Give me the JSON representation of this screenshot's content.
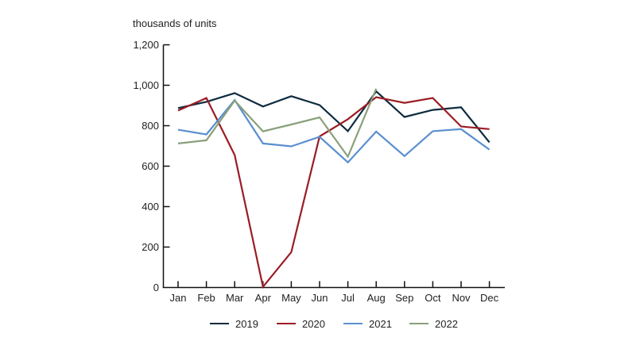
{
  "chart_data": {
    "type": "line",
    "title": "",
    "xlabel": "",
    "ylabel": "thousands of units",
    "ylim": [
      0,
      1200
    ],
    "yticks": [
      0,
      200,
      400,
      600,
      800,
      1000,
      1200
    ],
    "ytick_labels": [
      "0",
      "200",
      "400",
      "600",
      "800",
      "1,000",
      "1,200"
    ],
    "categories": [
      "Jan",
      "Feb",
      "Mar",
      "Apr",
      "May",
      "Jun",
      "Jul",
      "Aug",
      "Sep",
      "Oct",
      "Nov",
      "Dec"
    ],
    "grid": false,
    "legend_position": "bottom",
    "series": [
      {
        "name": "2019",
        "color": "#0d2b40",
        "values": [
          887,
          918,
          961,
          895,
          946,
          902,
          773,
          970,
          843,
          878,
          891,
          718
        ]
      },
      {
        "name": "2020",
        "color": "#9b1c24",
        "values": [
          875,
          937,
          655,
          3,
          175,
          747,
          832,
          941,
          913,
          937,
          796,
          783
        ]
      },
      {
        "name": "2021",
        "color": "#5a8fd0",
        "values": [
          780,
          757,
          927,
          712,
          698,
          745,
          619,
          771,
          650,
          773,
          783,
          682
        ]
      },
      {
        "name": "2022",
        "color": "#8aa07a",
        "values": [
          712,
          728,
          924,
          772,
          806,
          841,
          647,
          983,
          null,
          null,
          null,
          null
        ]
      }
    ]
  }
}
